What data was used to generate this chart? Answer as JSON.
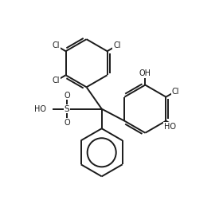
{
  "bg_color": "#ffffff",
  "line_color": "#1a1a1a",
  "line_width": 1.4,
  "font_size": 7.0,
  "figsize": [
    2.8,
    2.76
  ],
  "dpi": 100,
  "xlim": [
    0,
    10
  ],
  "ylim": [
    0,
    10
  ]
}
